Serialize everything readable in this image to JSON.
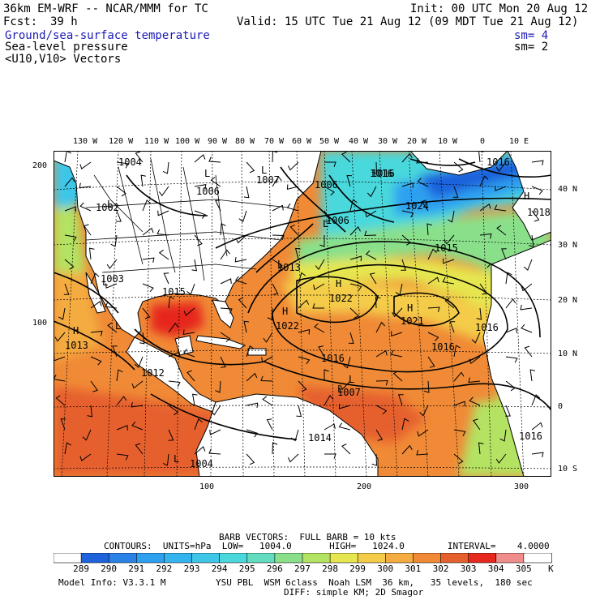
{
  "header": {
    "model_title": "36km EM-WRF -- NCAR/MMM for TC",
    "init": "Init: 00 UTC Mon 20 Aug 12",
    "fcst_label": "Fcst:",
    "fcst_value": "39 h",
    "valid": "Valid: 15 UTC Tue 21 Aug 12 (09 MDT Tue 21 Aug 12)",
    "field1": "Ground/sea-surface temperature",
    "field1_sm": "sm= 4",
    "field2": "Sea-level pressure",
    "field2_sm": "sm= 2",
    "field3": "<U10,V10> Vectors"
  },
  "map": {
    "top_lon_labels": [
      "130 W",
      "120 W",
      "110 W",
      "100 W",
      "90 W",
      "80 W",
      "70 W",
      "60 W",
      "50 W",
      "40 W",
      "30 W",
      "20 W",
      "10 W",
      "0",
      "10 E"
    ],
    "right_lat_labels": [
      "40 N",
      "30 N",
      "20 N",
      "10 N",
      "0",
      "10 S"
    ],
    "left_grid_labels": [
      "200",
      "100"
    ],
    "bottom_grid_labels": [
      "100",
      "200",
      "300"
    ],
    "highs": [
      "H",
      "H",
      "H",
      "H",
      "H"
    ],
    "lows": [
      "L",
      "L",
      "L",
      "L",
      "L",
      "L",
      "L",
      "L",
      "L",
      "L"
    ],
    "pressure_labels": [
      "1004",
      "1006",
      "1002",
      "1007",
      "1006",
      "1006",
      "1016",
      "1024",
      "1016",
      "1018",
      "1015",
      "1013",
      "1003",
      "1015",
      "1013",
      "1022",
      "1022",
      "1021",
      "1016",
      "1016",
      "1012",
      "1007",
      "1014",
      "1004",
      "1016",
      "1016",
      "1016"
    ],
    "colors": {
      "land": "#ffffff",
      "contour": "#000000",
      "grid": "#000000"
    }
  },
  "legend": {
    "barb_line": "BARB VECTORS:  FULL BARB = 10 kts",
    "contours_line": "CONTOURS:  UNITS=hPa  LOW=   1004.0       HIGH=   1024.0        INTERVAL=    4.0000",
    "colorbar_values": [
      "289",
      "290",
      "291",
      "292",
      "293",
      "294",
      "295",
      "296",
      "297",
      "298",
      "299",
      "300",
      "301",
      "302",
      "303",
      "304",
      "305"
    ],
    "colorbar_unit": "K",
    "colorbar_colors": [
      "#ffffff",
      "#1e62dc",
      "#2a82e6",
      "#2ea0f0",
      "#34b4ee",
      "#3ec6e8",
      "#4ad8dc",
      "#62dcbe",
      "#8ae08a",
      "#b4e262",
      "#e6e650",
      "#f4cc4a",
      "#f4ac40",
      "#f08a36",
      "#e6602e",
      "#e6281e",
      "#f08c8c",
      "#ffffff"
    ],
    "model_info": "Model Info: V3.3.1 M",
    "model_info2": "YSU PBL  WSM 6class  Noah LSM  36 km,   35 levels,  180 sec",
    "model_info3": "DIFF: simple KM; 2D Smagor"
  }
}
